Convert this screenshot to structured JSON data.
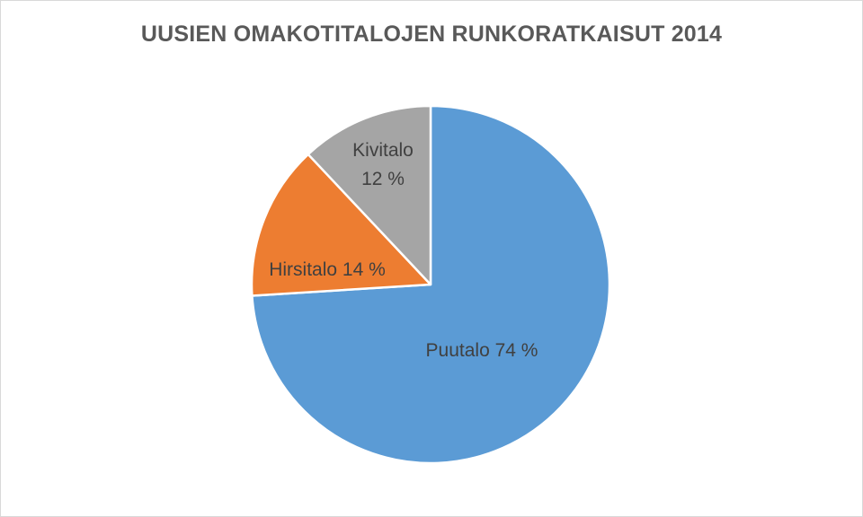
{
  "chart_data": {
    "type": "pie",
    "title": "UUSIEN OMAKOTITALOJEN RUNKORATKAISUT 2014",
    "categories": [
      "Puutalo",
      "Hirsitalo",
      "Kivitalo"
    ],
    "values": [
      74,
      14,
      12
    ],
    "unit": "%",
    "colors": [
      "#5b9bd5",
      "#ed7d31",
      "#a5a5a5"
    ],
    "labels": [
      {
        "lines": [
          "Puutalo 74 %"
        ]
      },
      {
        "lines": [
          "Hirsitalo 14 %"
        ]
      },
      {
        "lines": [
          "Kivitalo",
          "12 %"
        ]
      }
    ],
    "start_angle": "12 o'clock",
    "direction": "clockwise",
    "legend": "none"
  }
}
